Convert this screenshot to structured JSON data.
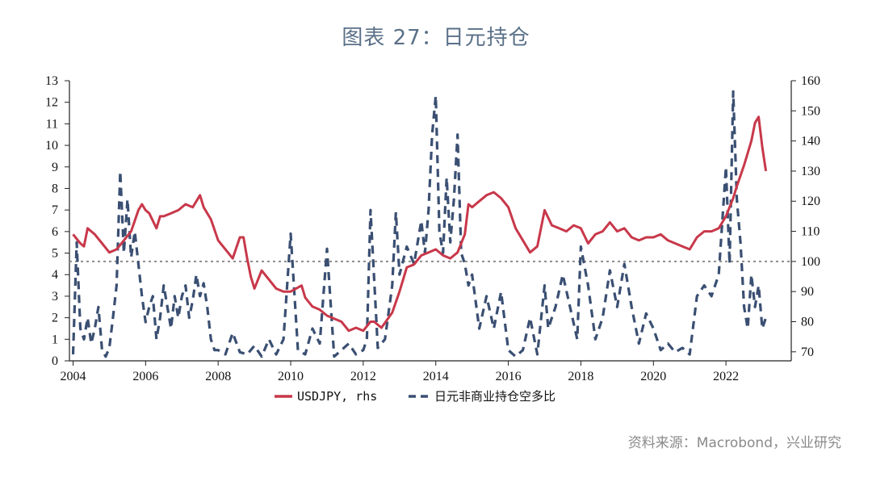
{
  "title": "图表 27：日元持仓",
  "source": "资料来源：Macrobond，兴业研究",
  "chart_data": {
    "type": "line",
    "x_ticks": [
      "2004",
      "2006",
      "2008",
      "2010",
      "2012",
      "2014",
      "2016",
      "2018",
      "2020",
      "2022"
    ],
    "x_range": [
      2003.9,
      2023.8
    ],
    "left_axis": {
      "ticks": [
        "0",
        "1",
        "2",
        "3",
        "4",
        "5",
        "6",
        "7",
        "8",
        "9",
        "10",
        "11",
        "12",
        "13"
      ],
      "ylim": [
        0,
        13
      ]
    },
    "right_axis": {
      "ticks": [
        "70",
        "80",
        "90",
        "100",
        "110",
        "120",
        "130",
        "140",
        "150",
        "160"
      ],
      "ylim": [
        67,
        160
      ]
    },
    "reference_line": {
      "axis": "right",
      "value": 100,
      "style": "dotted",
      "color": "#8c8c8c"
    },
    "series": [
      {
        "name": "USDJPY, rhs",
        "axis": "right",
        "color": "#c8384a",
        "style": "solid",
        "x": [
          2004.0,
          2004.2,
          2004.3,
          2004.4,
          2004.5,
          2004.6,
          2004.8,
          2005.0,
          2005.2,
          2005.4,
          2005.6,
          2005.8,
          2005.9,
          2006.0,
          2006.1,
          2006.3,
          2006.4,
          2006.5,
          2006.7,
          2006.9,
          2007.1,
          2007.3,
          2007.5,
          2007.6,
          2007.8,
          2008.0,
          2008.2,
          2008.4,
          2008.6,
          2008.7,
          2008.8,
          2008.9,
          2009.0,
          2009.2,
          2009.4,
          2009.6,
          2009.8,
          2010.0,
          2010.3,
          2010.4,
          2010.6,
          2010.8,
          2011.0,
          2011.2,
          2011.4,
          2011.6,
          2011.8,
          2012.0,
          2012.2,
          2012.3,
          2012.5,
          2012.8,
          2013.0,
          2013.2,
          2013.4,
          2013.6,
          2013.8,
          2014.0,
          2014.2,
          2014.4,
          2014.6,
          2014.8,
          2014.9,
          2015.0,
          2015.2,
          2015.4,
          2015.6,
          2015.8,
          2016.0,
          2016.2,
          2016.4,
          2016.6,
          2016.8,
          2017.0,
          2017.2,
          2017.4,
          2017.6,
          2017.8,
          2018.0,
          2018.2,
          2018.4,
          2018.6,
          2018.8,
          2019.0,
          2019.2,
          2019.4,
          2019.6,
          2019.8,
          2020.0,
          2020.2,
          2020.4,
          2020.6,
          2020.8,
          2021.0,
          2021.2,
          2021.4,
          2021.6,
          2021.8,
          2022.0,
          2022.2,
          2022.3,
          2022.5,
          2022.7,
          2022.8,
          2022.9,
          2023.0,
          2023.1
        ],
        "y": [
          109,
          106,
          105,
          111,
          110,
          109,
          106,
          103,
          104,
          107,
          110,
          117,
          119,
          117,
          116,
          111,
          115,
          115,
          116,
          117,
          119,
          118,
          122,
          118,
          114,
          107,
          104,
          101,
          108,
          108,
          101,
          95,
          91,
          97,
          94,
          91,
          90,
          90,
          92,
          88,
          85,
          84,
          82,
          81,
          80,
          77,
          78,
          77,
          80,
          80,
          78,
          83,
          90,
          98,
          99,
          102,
          103,
          104,
          102,
          101,
          103,
          109,
          119,
          118,
          120,
          122,
          123,
          121,
          118,
          111,
          107,
          103,
          105,
          117,
          112,
          111,
          110,
          112,
          111,
          106,
          109,
          110,
          113,
          110,
          111,
          108,
          107,
          108,
          108,
          109,
          107,
          106,
          105,
          104,
          108,
          110,
          110,
          111,
          115,
          121,
          125,
          132,
          140,
          146,
          148,
          138,
          130
        ]
      },
      {
        "name": "日元非商业持仓空多比",
        "axis": "left",
        "color": "#3a4f72",
        "style": "dashed",
        "x": [
          2004.0,
          2004.1,
          2004.2,
          2004.3,
          2004.4,
          2004.5,
          2004.6,
          2004.7,
          2004.8,
          2004.9,
          2005.0,
          2005.1,
          2005.2,
          2005.3,
          2005.4,
          2005.5,
          2005.6,
          2005.7,
          2005.8,
          2005.9,
          2006.0,
          2006.1,
          2006.2,
          2006.3,
          2006.4,
          2006.5,
          2006.6,
          2006.7,
          2006.8,
          2006.9,
          2007.0,
          2007.1,
          2007.2,
          2007.3,
          2007.4,
          2007.5,
          2007.6,
          2007.7,
          2007.8,
          2007.9,
          2008.0,
          2008.2,
          2008.4,
          2008.6,
          2008.8,
          2009.0,
          2009.2,
          2009.4,
          2009.6,
          2009.8,
          2010.0,
          2010.2,
          2010.4,
          2010.6,
          2010.8,
          2011.0,
          2011.2,
          2011.4,
          2011.6,
          2011.8,
          2012.0,
          2012.1,
          2012.2,
          2012.4,
          2012.6,
          2012.8,
          2012.9,
          2013.0,
          2013.2,
          2013.4,
          2013.6,
          2013.7,
          2013.8,
          2013.9,
          2014.0,
          2014.1,
          2014.2,
          2014.3,
          2014.4,
          2014.5,
          2014.6,
          2014.7,
          2014.8,
          2014.9,
          2015.0,
          2015.2,
          2015.4,
          2015.6,
          2015.8,
          2016.0,
          2016.2,
          2016.4,
          2016.6,
          2016.8,
          2017.0,
          2017.1,
          2017.3,
          2017.5,
          2017.7,
          2017.9,
          2018.0,
          2018.2,
          2018.4,
          2018.6,
          2018.8,
          2019.0,
          2019.2,
          2019.4,
          2019.6,
          2019.8,
          2020.0,
          2020.2,
          2020.4,
          2020.6,
          2020.8,
          2021.0,
          2021.2,
          2021.4,
          2021.6,
          2021.8,
          2022.0,
          2022.1,
          2022.2,
          2022.3,
          2022.4,
          2022.5,
          2022.6,
          2022.7,
          2022.8,
          2022.9,
          2023.0,
          2023.1
        ],
        "y": [
          0.3,
          5.5,
          1.5,
          1.0,
          2.0,
          0.8,
          1.5,
          2.5,
          0.5,
          0.2,
          0.6,
          2.0,
          3.5,
          8.8,
          5.0,
          7.5,
          4.8,
          6.0,
          4.5,
          3.0,
          1.8,
          2.5,
          3.0,
          1.0,
          2.0,
          3.5,
          2.5,
          1.5,
          3.0,
          2.0,
          3.0,
          3.5,
          2.0,
          2.8,
          4.0,
          3.0,
          3.6,
          2.5,
          1.0,
          0.5,
          0.5,
          0.3,
          1.3,
          0.4,
          0.3,
          0.7,
          0.2,
          1.0,
          0.3,
          1.0,
          5.9,
          0.5,
          0.3,
          1.5,
          0.8,
          5.2,
          0.2,
          0.5,
          0.8,
          0.3,
          0.5,
          1.0,
          7.0,
          0.6,
          1.0,
          3.5,
          6.9,
          4.0,
          5.3,
          4.5,
          6.5,
          5.0,
          7.0,
          10.5,
          12.3,
          6.0,
          5.0,
          8.5,
          5.5,
          7.5,
          10.5,
          5.0,
          4.5,
          3.5,
          4.0,
          1.5,
          3.0,
          1.5,
          3.2,
          0.5,
          0.2,
          0.5,
          2.0,
          0.3,
          3.5,
          1.5,
          2.5,
          4.0,
          2.5,
          1.0,
          5.3,
          3.5,
          1.0,
          2.0,
          4.2,
          2.5,
          4.5,
          2.5,
          0.8,
          2.2,
          1.5,
          0.5,
          0.8,
          0.4,
          0.6,
          0.3,
          3.0,
          3.5,
          3.0,
          4.0,
          9.0,
          4.5,
          12.5,
          7.5,
          5.5,
          2.5,
          1.5,
          4.0,
          2.5,
          3.5,
          1.5,
          2.0
        ]
      }
    ],
    "legend": {
      "placement": "bottom"
    }
  }
}
